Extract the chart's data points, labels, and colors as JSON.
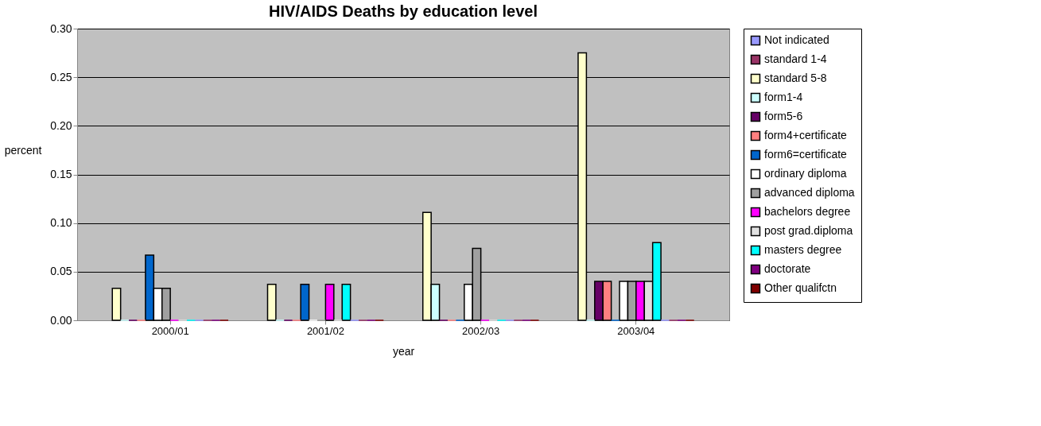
{
  "chart_data": {
    "type": "bar",
    "title": "HIV/AIDS Deaths by education level",
    "xlabel": "year",
    "ylabel": "percent",
    "categories": [
      "2000/01",
      "2001/02",
      "2002/03",
      "2003/04"
    ],
    "ylim": [
      0,
      0.3
    ],
    "yticks": [
      {
        "value": 0,
        "label": "0.00"
      },
      {
        "value": 0.05,
        "label": "0.05"
      },
      {
        "value": 0.1,
        "label": "0.10"
      },
      {
        "value": 0.15,
        "label": "0.15"
      },
      {
        "value": 0.2,
        "label": "0.20"
      },
      {
        "value": 0.25,
        "label": "0.25"
      },
      {
        "value": 0.3,
        "label": "0.30"
      }
    ],
    "grid": "y",
    "legend": "right",
    "series": [
      {
        "name": "Not indicated",
        "color": "#9999ff",
        "values": [
          0,
          0,
          0,
          0
        ]
      },
      {
        "name": "standard 1-4",
        "color": "#993366",
        "values": [
          0,
          0,
          0,
          0
        ]
      },
      {
        "name": "standard 5-8",
        "color": "#ffffcc",
        "values": [
          0.033,
          0.037,
          0.111,
          0.275
        ]
      },
      {
        "name": "form1-4",
        "color": "#ccffff",
        "values": [
          0,
          0,
          0.037,
          0
        ]
      },
      {
        "name": "form5-6",
        "color": "#660066",
        "values": [
          0,
          0,
          0,
          0.04
        ]
      },
      {
        "name": "form4+certificate",
        "color": "#ff8080",
        "values": [
          0,
          0,
          0,
          0.04
        ]
      },
      {
        "name": "form6=certificate",
        "color": "#0066cc",
        "values": [
          0.067,
          0.037,
          0,
          0
        ]
      },
      {
        "name": "ordinary diploma",
        "color": "#ffffff",
        "values": [
          0.033,
          0,
          0.037,
          0.04
        ]
      },
      {
        "name": "advanced diploma",
        "color": "#a0a0a0",
        "values": [
          0.033,
          0,
          0.074,
          0.04
        ]
      },
      {
        "name": "bachelors degree",
        "color": "#ff00ff",
        "values": [
          0,
          0.037,
          0,
          0.04
        ]
      },
      {
        "name": "post grad.diploma",
        "color": "#e0e0e0",
        "values": [
          0,
          0,
          0,
          0.04
        ]
      },
      {
        "name": "masters degree",
        "color": "#00ffff",
        "values": [
          0,
          0.037,
          0,
          0.08
        ]
      },
      {
        "name": "doctorate",
        "color": "#800080",
        "values": [
          0,
          0,
          0,
          0
        ]
      },
      {
        "name": "Other qualifctn",
        "color": "#800000",
        "values": [
          0,
          0,
          0,
          0
        ]
      }
    ]
  }
}
